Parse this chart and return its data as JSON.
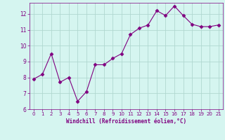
{
  "x": [
    0,
    1,
    2,
    3,
    4,
    5,
    6,
    7,
    8,
    9,
    10,
    11,
    12,
    13,
    14,
    15,
    16,
    17,
    18,
    19,
    20,
    21
  ],
  "y": [
    7.9,
    8.2,
    9.5,
    7.7,
    8.0,
    6.5,
    7.1,
    8.8,
    8.8,
    9.2,
    9.5,
    10.7,
    11.1,
    11.3,
    12.2,
    11.9,
    12.5,
    11.9,
    11.35,
    11.2,
    11.2,
    11.3
  ],
  "line_color": "#800080",
  "marker_color": "#800080",
  "bg_color": "#d5f5f0",
  "grid_color": "#b0d8d0",
  "xlabel": "Windchill (Refroidissement éolien,°C)",
  "xlabel_color": "#800080",
  "tick_color": "#800080",
  "ylim": [
    6,
    12.7
  ],
  "xlim": [
    -0.5,
    21.5
  ],
  "yticks": [
    6,
    7,
    8,
    9,
    10,
    11,
    12
  ],
  "xticks": [
    0,
    1,
    2,
    3,
    4,
    5,
    6,
    7,
    8,
    9,
    10,
    11,
    12,
    13,
    14,
    15,
    16,
    17,
    18,
    19,
    20,
    21
  ]
}
